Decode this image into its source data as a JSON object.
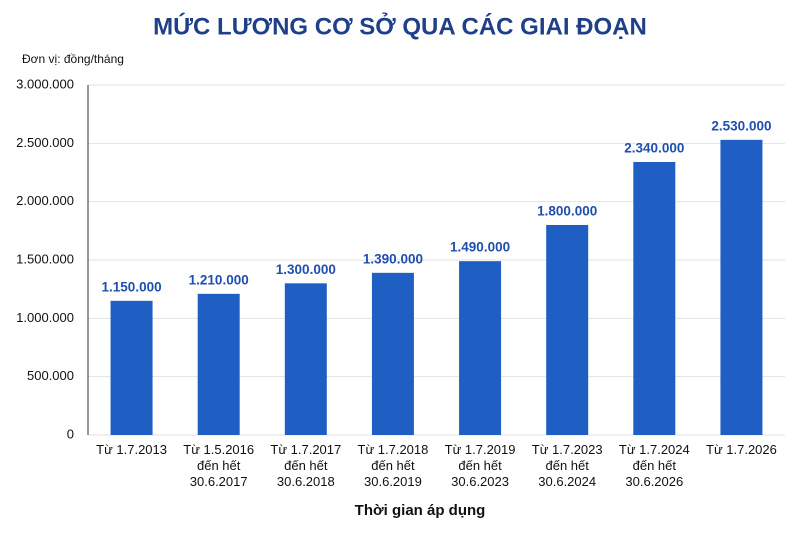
{
  "chart_data": {
    "type": "bar",
    "title": "MỨC LƯƠNG CƠ SỞ QUA CÁC GIAI ĐOẠN",
    "y_label": "Đơn vị: đồng/tháng",
    "x_label": "Thời gian áp dụng",
    "categories": [
      [
        "Từ 1.7.2013"
      ],
      [
        "Từ 1.5.2016",
        "đến hết",
        "30.6.2017"
      ],
      [
        "Từ 1.7.2017",
        "đến hết",
        "30.6.2018"
      ],
      [
        "Từ 1.7.2018",
        "đến hết",
        "30.6.2019"
      ],
      [
        "Từ 1.7.2019",
        "đến hết",
        "30.6.2023"
      ],
      [
        "Từ 1.7.2023",
        "đến hết",
        "30.6.2024"
      ],
      [
        "Từ 1.7.2024",
        "đến hết",
        "30.6.2026"
      ],
      [
        "Từ 1.7.2026"
      ]
    ],
    "values": [
      1150000,
      1210000,
      1300000,
      1390000,
      1490000,
      1800000,
      2340000,
      2530000
    ],
    "value_labels": [
      "1.150.000",
      "1.210.000",
      "1.300.000",
      "1.390.000",
      "1.490.000",
      "1.800.000",
      "2.340.000",
      "2.530.000"
    ],
    "color": "#1f5fc4",
    "ylim": [
      0,
      3000000
    ],
    "yticks": [
      0,
      {
        "value": 500000,
        "label": "500.000"
      },
      {
        "value": 1000000,
        "label": "1.000.000"
      },
      {
        "value": 1500000,
        "label": "1.500.000"
      },
      {
        "value": 2000000,
        "label": "2.000.000"
      },
      {
        "value": 2500000,
        "label": "2.500.000"
      },
      {
        "value": 3000000,
        "label": "3.000.000"
      }
    ],
    "grid": true
  }
}
